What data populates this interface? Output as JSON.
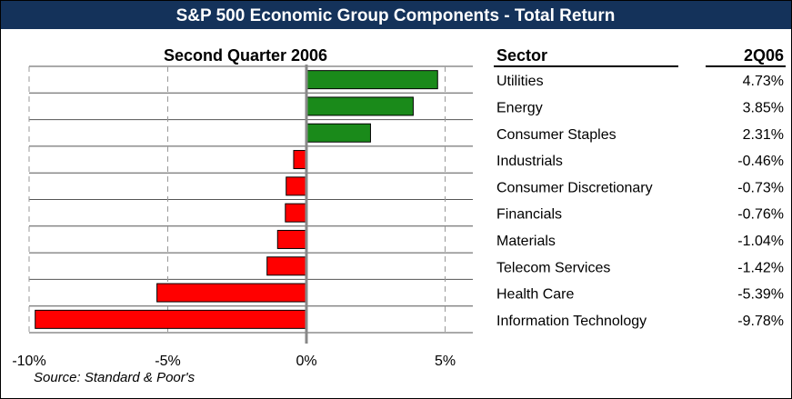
{
  "chart_data": {
    "type": "hbar",
    "title": "S&P 500 Economic Group Components - Total Return",
    "subtitle": "Second Quarter 2006",
    "column_headers": [
      "Sector",
      "2Q06"
    ],
    "categories": [
      "Utilities",
      "Energy",
      "Consumer Staples",
      "Industrials",
      "Consumer Discretionary",
      "Financials",
      "Materials",
      "Telecom Services",
      "Health Care",
      "Information Technology"
    ],
    "values": [
      4.73,
      3.85,
      2.31,
      -0.46,
      -0.73,
      -0.76,
      -1.04,
      -1.42,
      -5.39,
      -9.78
    ],
    "value_labels": [
      "4.73%",
      "3.85%",
      "2.31%",
      "-0.46%",
      "-0.73%",
      "-0.76%",
      "-1.04%",
      "-1.42%",
      "-5.39%",
      "-9.78%"
    ],
    "colors": {
      "positive": "#1a8a1a",
      "negative": "#ff0000"
    },
    "xlim": [
      -10,
      6
    ],
    "xticks": [
      {
        "value": -10,
        "label": "-10%"
      },
      {
        "value": -5,
        "label": "-5%"
      },
      {
        "value": 0,
        "label": "0%"
      },
      {
        "value": 5,
        "label": "5%"
      }
    ],
    "grid": true,
    "source": "Source:  Standard & Poor's"
  }
}
